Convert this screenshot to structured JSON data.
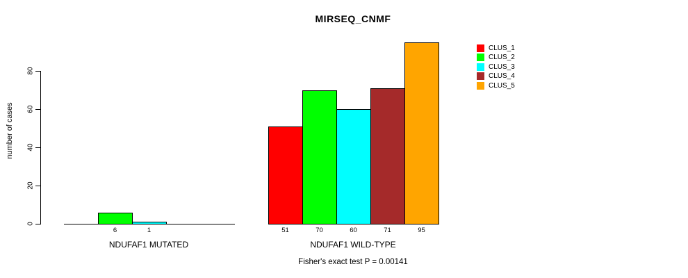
{
  "chart_data": {
    "type": "bar",
    "title": "MIRSEQ_CNMF",
    "ylabel": "number of cases",
    "xlabel": "",
    "ylim": [
      0,
      95
    ],
    "yticks": [
      0,
      20,
      40,
      60,
      80
    ],
    "grid": false,
    "legend_position": "top-right",
    "categories": [
      "NDUFAF1 MUTATED",
      "NDUFAF1 WILD-TYPE"
    ],
    "series": [
      {
        "name": "CLUS_1",
        "color": "#FF0000",
        "values": [
          0,
          51
        ]
      },
      {
        "name": "CLUS_2",
        "color": "#00FF00",
        "values": [
          6,
          70
        ]
      },
      {
        "name": "CLUS_3",
        "color": "#00FFFF",
        "values": [
          1,
          60
        ]
      },
      {
        "name": "CLUS_4",
        "color": "#A52A2A",
        "values": [
          0,
          71
        ]
      },
      {
        "name": "CLUS_5",
        "color": "#FFA500",
        "values": [
          0,
          95
        ]
      }
    ],
    "bar_value_labels_visible": [
      "6",
      "1",
      "51",
      "70",
      "60",
      "71",
      "95"
    ],
    "annotation": "Fisher's exact test P = 0.00141"
  }
}
